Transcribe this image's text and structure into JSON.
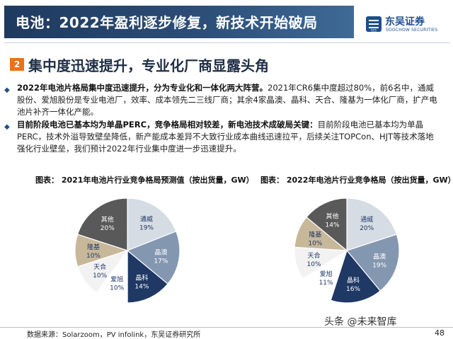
{
  "header": {
    "title": "电池：2022年盈利逐步修复，新技术开始破局",
    "logo_cn": "东吴证券",
    "logo_en": "SOOCHOW SECURITIES",
    "logo_mark": "SCS"
  },
  "section": {
    "number": "2",
    "title": "集中度迅速提升，专业化厂商显露头角"
  },
  "bullets": [
    {
      "bold": "2022年电池片格局集中度迅速提升，分为专业化和一体化两大阵营。",
      "text": "2021年CR6集中度超过80%，前6名中，通威股份、爱旭股份是专业电池厂，效率、成本领先二三线厂商；其余4家晶澳、晶科、天合、隆基为一体化厂商，扩产电池片补齐一体化产能。"
    },
    {
      "bold": "目前阶段电池已基本均为单晶PERC，竞争格局相对较差，新电池技术成破局关键：",
      "text": "目前阶段电池已基本均为单晶PERC，技术外溢导致壁垒降低，新产能成本差异不大致行业成本曲线迅速拉平，后续关注TOPCon、HJT等技术落地强化行业壁垒，我们预计2022年行业集中度进一步迅速提升。"
    }
  ],
  "chart_data": [
    {
      "type": "pie",
      "title": "图表： 2021年电池片行业竞争格局预测值（按出货量，GW）",
      "categories": [
        "通威",
        "晶澳",
        "晶科",
        "爱旭",
        "天合",
        "隆基",
        "其他"
      ],
      "values": [
        19,
        17,
        14,
        10,
        10,
        10,
        20
      ],
      "labels": [
        "19%",
        "17%",
        "14%",
        "10%",
        "10%",
        "10%",
        "20%"
      ],
      "colors": [
        "#d6dce4",
        "#8497b0",
        "#1f3864",
        "#ffffff",
        "#f2f2f2",
        "#c8b89a",
        "#595959"
      ]
    },
    {
      "type": "pie",
      "title": "图表： 2022年电池片行业竞争格局（按出货量，GW）",
      "categories": [
        "通威",
        "晶澳",
        "晶科",
        "爱旭",
        "天合",
        "隆基",
        "其他"
      ],
      "values": [
        20,
        19,
        16,
        11,
        10,
        10,
        14
      ],
      "labels": [
        "20%",
        "19%",
        "16%",
        "11%",
        "10%",
        "10%",
        "14%"
      ],
      "colors": [
        "#d6dce4",
        "#8497b0",
        "#1f3864",
        "#ffffff",
        "#f2f2f2",
        "#c8b89a",
        "#595959"
      ]
    }
  ],
  "footer": {
    "source": "数据来源：Solarzoom，PV infolink，东吴证券研究所",
    "watermark": "头条 @未来智库",
    "page": "48"
  }
}
